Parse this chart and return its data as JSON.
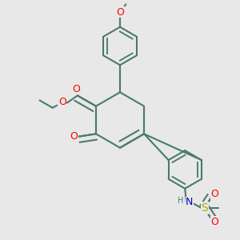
{
  "bg_color": "#e8e8e8",
  "bond_color": "#4a7a6a",
  "bond_width": 1.5,
  "atom_colors": {
    "O": "#ff0000",
    "N": "#0000cc",
    "S": "#aaaa00",
    "C": "#4a7a6a",
    "H": "#4a7a6a"
  },
  "font_size": 8
}
